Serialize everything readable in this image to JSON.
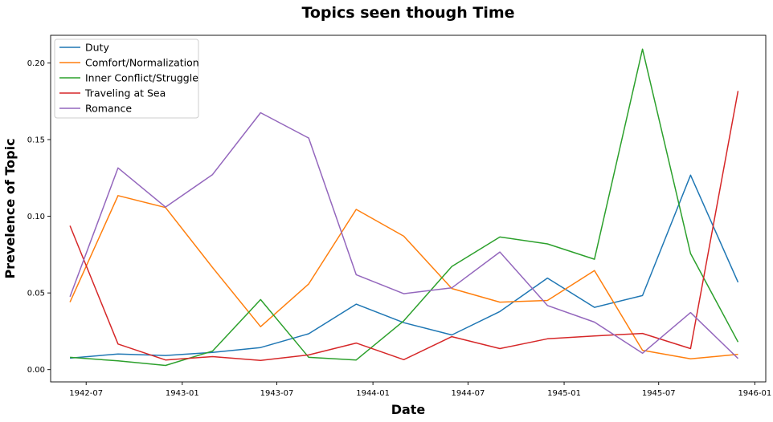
{
  "chart_data": {
    "type": "line",
    "title": "Topics seen though Time",
    "xlabel": "Date",
    "ylabel": "Prevelence of Topic",
    "x": [
      "1942-05-31",
      "1942-08-31",
      "1942-11-30",
      "1943-02-28",
      "1943-05-31",
      "1943-08-31",
      "1943-11-30",
      "1944-02-29",
      "1944-05-31",
      "1944-08-31",
      "1944-11-30",
      "1945-02-28",
      "1945-05-31",
      "1945-08-31",
      "1945-11-30"
    ],
    "xlim": [
      "1942-04-24",
      "1946-01-22"
    ],
    "xticks": [
      {
        "date": "1942-07-01",
        "label": "1942-07"
      },
      {
        "date": "1943-01-01",
        "label": "1943-01"
      },
      {
        "date": "1943-07-01",
        "label": "1943-07"
      },
      {
        "date": "1944-01-01",
        "label": "1944-01"
      },
      {
        "date": "1944-07-01",
        "label": "1944-07"
      },
      {
        "date": "1945-01-01",
        "label": "1945-01"
      },
      {
        "date": "1945-07-01",
        "label": "1945-07"
      },
      {
        "date": "1946-01-01",
        "label": "1946-01"
      }
    ],
    "ylim": [
      -0.008,
      0.218
    ],
    "yticks": [
      0.0,
      0.05,
      0.1,
      0.15,
      0.2
    ],
    "ytick_labels": [
      "0.00",
      "0.05",
      "0.10",
      "0.15",
      "0.20"
    ],
    "grid": false,
    "legend_position": "top-left",
    "series": [
      {
        "name": "Duty",
        "color": "#1f77b4",
        "values": [
          0.0075,
          0.0102,
          0.0092,
          0.0112,
          0.0144,
          0.0234,
          0.0427,
          0.0306,
          0.0226,
          0.0379,
          0.0597,
          0.0406,
          0.0483,
          0.1268,
          0.057
        ]
      },
      {
        "name": "Comfort/Normalization",
        "color": "#ff7f0e",
        "values": [
          0.044,
          0.1135,
          0.1057,
          0.0666,
          0.028,
          0.0559,
          0.1045,
          0.087,
          0.0529,
          0.044,
          0.0451,
          0.0646,
          0.0126,
          0.007,
          0.01
        ]
      },
      {
        "name": "Inner Conflict/Struggle",
        "color": "#2ca02c",
        "values": [
          0.008,
          0.0057,
          0.0027,
          0.0121,
          0.0457,
          0.008,
          0.0063,
          0.0318,
          0.0673,
          0.0865,
          0.082,
          0.072,
          0.209,
          0.0757,
          0.018
        ]
      },
      {
        "name": "Traveling at Sea",
        "color": "#d62728",
        "values": [
          0.0938,
          0.0167,
          0.0063,
          0.0085,
          0.006,
          0.0096,
          0.0173,
          0.0065,
          0.0215,
          0.0137,
          0.0201,
          0.022,
          0.0236,
          0.0137,
          0.1817
        ]
      },
      {
        "name": "Romance",
        "color": "#9467bd",
        "values": [
          0.0475,
          0.1315,
          0.106,
          0.1272,
          0.1675,
          0.151,
          0.0619,
          0.0495,
          0.0533,
          0.0767,
          0.0418,
          0.031,
          0.0107,
          0.0372,
          0.0073
        ]
      }
    ]
  }
}
